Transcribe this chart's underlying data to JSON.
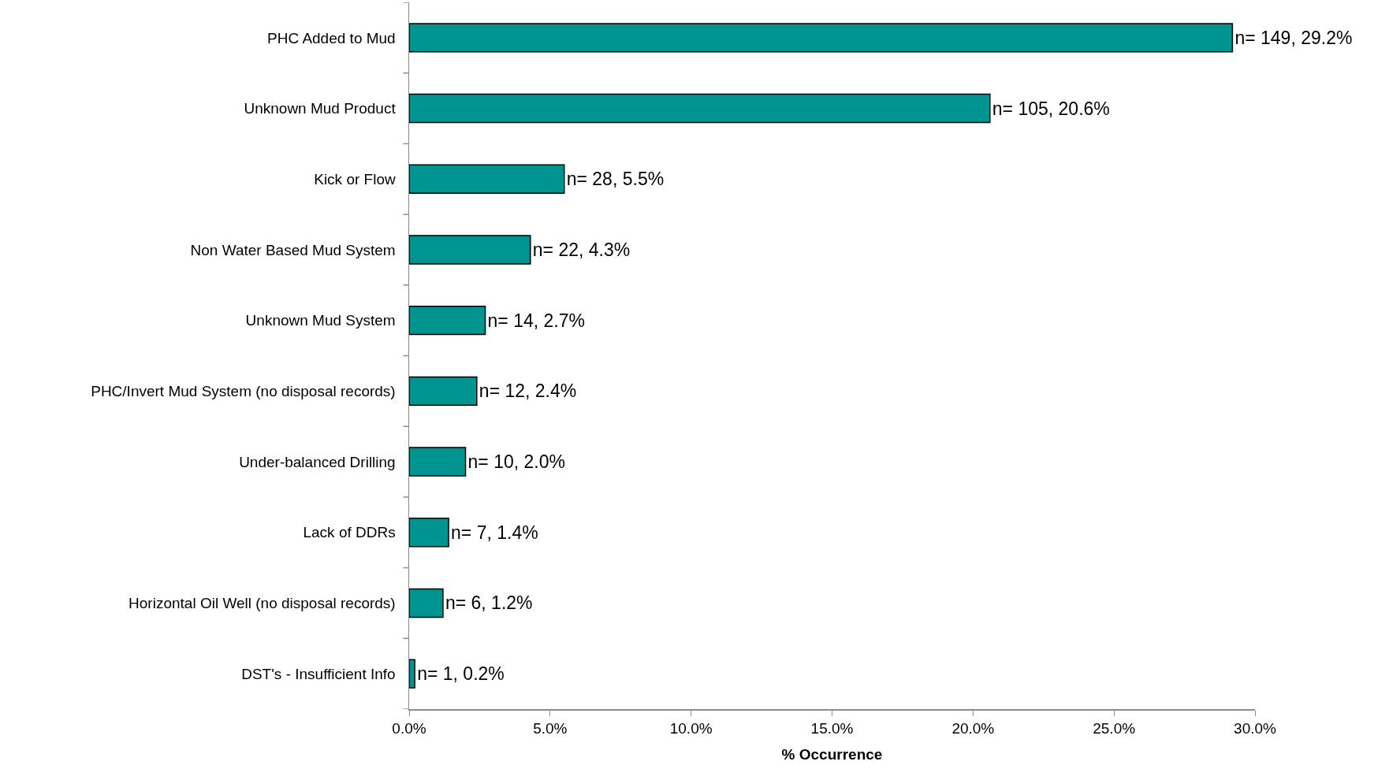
{
  "chart_data": {
    "type": "bar",
    "orientation": "horizontal",
    "xlabel": "% Occurrence",
    "categories": [
      "PHC Added to Mud",
      "Unknown Mud Product",
      "Kick or Flow",
      "Non Water Based Mud System",
      "Unknown Mud System",
      "PHC/Invert Mud System (no disposal records)",
      "Under-balanced Drilling",
      "Lack of DDRs",
      "Horizontal Oil Well (no disposal records)",
      "DST's - Insufficient Info"
    ],
    "values": [
      29.2,
      20.6,
      5.5,
      4.3,
      2.7,
      2.4,
      2.0,
      1.4,
      1.2,
      0.2
    ],
    "value_labels": [
      "n= 149, 29.2%",
      "n= 105, 20.6%",
      "n= 28, 5.5%",
      "n= 22, 4.3%",
      "n= 14, 2.7%",
      "n= 12, 2.4%",
      "n= 10, 2.0%",
      "n= 7, 1.4%",
      "n= 6, 1.2%",
      "n= 1, 0.2%"
    ],
    "color": "#009490",
    "xlim": [
      0,
      30
    ],
    "xticks": [
      {
        "value": 0,
        "label": "0.0%"
      },
      {
        "value": 5,
        "label": "5.0%"
      },
      {
        "value": 10,
        "label": "10.0%"
      },
      {
        "value": 15,
        "label": "15.0%"
      },
      {
        "value": 20,
        "label": "20.0%"
      },
      {
        "value": 25,
        "label": "25.0%"
      },
      {
        "value": 30,
        "label": "30.0%"
      }
    ]
  }
}
